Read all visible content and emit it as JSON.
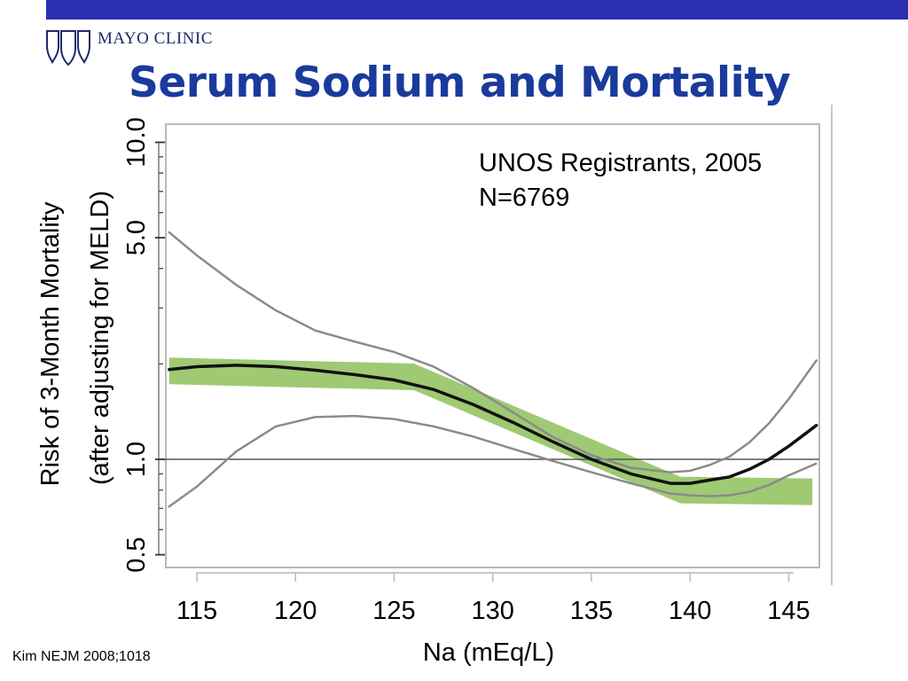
{
  "header": {
    "brand": "MAYO CLINIC",
    "accent_color": "#2b2faf",
    "title_color": "#1a3a9c"
  },
  "slide": {
    "title": "Serum Sodium and Mortality",
    "citation": "Kim NEJM 2008;1018"
  },
  "chart_data": {
    "type": "line",
    "title": "Serum Sodium and Mortality",
    "xlabel": "Na (mEq/L)",
    "ylabel": "Risk of 3-Month Mortality",
    "ylabel2": "(after adjusting for MELD)",
    "annotation": [
      "UNOS Registrants, 2005",
      "N=6769"
    ],
    "xlim": [
      113.5,
      146.5
    ],
    "ylim": [
      0.45,
      11.5
    ],
    "y_scale": "log",
    "x_ticks": [
      115,
      120,
      125,
      130,
      135,
      140,
      145
    ],
    "x_tick_labels": [
      "115",
      "120",
      "125",
      "130",
      "135",
      "140",
      "145"
    ],
    "y_major_ticks": [
      0.5,
      1.0,
      5.0,
      10.0
    ],
    "y_major_tick_labels": [
      "0.5",
      "1.0",
      "5.0",
      "10.0"
    ],
    "reference_line": 1.0,
    "grid": false,
    "series": [
      {
        "role": "estimate",
        "color": "#111111",
        "x": [
          113.6,
          115,
          117,
          119,
          121,
          123,
          125,
          127,
          129,
          131,
          133,
          135,
          137,
          139,
          140,
          141,
          142,
          143,
          144,
          145,
          146.4
        ],
        "values": [
          1.92,
          1.96,
          1.98,
          1.96,
          1.91,
          1.85,
          1.78,
          1.66,
          1.49,
          1.31,
          1.14,
          1.0,
          0.9,
          0.84,
          0.84,
          0.86,
          0.88,
          0.93,
          1.0,
          1.1,
          1.28
        ]
      },
      {
        "role": "upper_ci",
        "color": "#8a8a8a",
        "x": [
          113.6,
          115,
          117,
          119,
          121,
          123,
          125,
          127,
          129,
          131,
          133,
          135,
          137,
          139,
          140,
          141,
          142,
          143,
          144,
          145,
          146.4
        ],
        "values": [
          5.2,
          4.4,
          3.55,
          2.95,
          2.55,
          2.35,
          2.18,
          1.96,
          1.68,
          1.41,
          1.18,
          1.03,
          0.94,
          0.91,
          0.92,
          0.96,
          1.02,
          1.13,
          1.3,
          1.55,
          2.05
        ]
      },
      {
        "role": "lower_ci",
        "color": "#8a8a8a",
        "x": [
          113.6,
          115,
          117,
          119,
          121,
          123,
          125,
          127,
          129,
          131,
          133,
          135,
          137,
          139,
          140,
          141,
          142,
          143,
          144,
          145,
          146.4
        ],
        "values": [
          0.71,
          0.82,
          1.06,
          1.27,
          1.36,
          1.37,
          1.34,
          1.27,
          1.18,
          1.08,
          0.99,
          0.91,
          0.84,
          0.78,
          0.77,
          0.765,
          0.77,
          0.79,
          0.83,
          0.89,
          0.97
        ]
      }
    ],
    "highlight_band": {
      "color": "#8ec05a",
      "points_x": [
        113.6,
        126,
        139.5,
        146.2
      ],
      "points_y": [
        1.9,
        1.82,
        0.8,
        0.79
      ]
    }
  }
}
